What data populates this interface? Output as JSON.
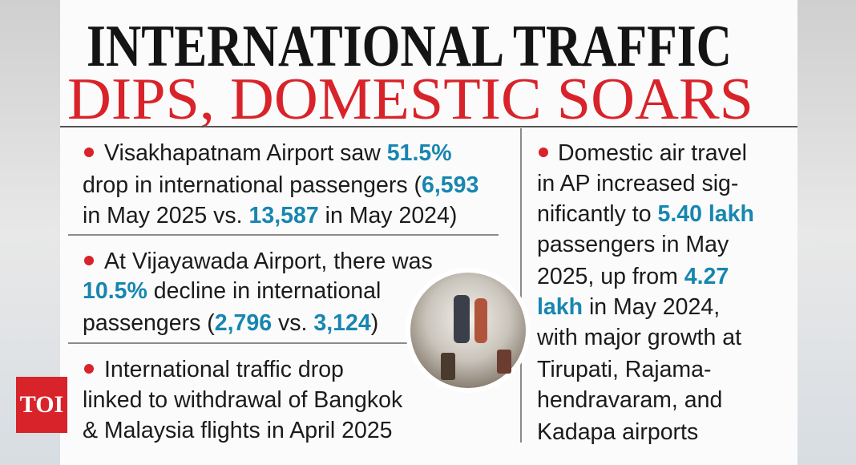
{
  "header": {
    "title_line_1": "INTERNATIONAL TRAFFIC",
    "title_line_2": "DIPS, DOMESTIC SOARS"
  },
  "left_bullets": [
    {
      "lines": [
        [
          {
            "text": "Visakhapatnam Airport saw "
          },
          {
            "text": "51.5%",
            "highlight": true
          }
        ],
        [
          {
            "text": "drop in international passengers ("
          },
          {
            "text": "6,593",
            "highlight": true
          }
        ],
        [
          {
            "text": "in May 2025 vs. "
          },
          {
            "text": "13,587",
            "highlight": true
          },
          {
            "text": " in May 2024)"
          }
        ]
      ]
    },
    {
      "lines": [
        [
          {
            "text": "At Vijayawada Airport, there was"
          }
        ],
        [
          {
            "text": "10.5%",
            "highlight": true
          },
          {
            "text": " decline in international"
          }
        ],
        [
          {
            "text": "passengers ("
          },
          {
            "text": "2,796",
            "highlight": true
          },
          {
            "text": " vs. "
          },
          {
            "text": "3,124",
            "highlight": true
          },
          {
            "text": ")"
          }
        ]
      ]
    },
    {
      "lines": [
        [
          {
            "text": "International traffic drop"
          }
        ],
        [
          {
            "text": "linked to withdrawal of Bangkok"
          }
        ],
        [
          {
            "text": "& Malaysia flights in April 2025"
          }
        ]
      ]
    }
  ],
  "right_bullets": [
    {
      "lines": [
        [
          {
            "text": "Domestic air travel"
          }
        ],
        [
          {
            "text": "in AP increased sig-"
          }
        ],
        [
          {
            "text": "nificantly to "
          },
          {
            "text": "5.40 lakh",
            "highlight": true
          }
        ],
        [
          {
            "text": "passengers in May"
          }
        ],
        [
          {
            "text": "2025, up from "
          },
          {
            "text": "4.27",
            "highlight": true
          }
        ],
        [
          {
            "text": "lakh",
            "highlight": true
          },
          {
            "text": " in May 2024,"
          }
        ],
        [
          {
            "text": "with major growth at"
          }
        ],
        [
          {
            "text": "Tirupati, Rajama-"
          }
        ],
        [
          {
            "text": "hendravaram, and"
          }
        ],
        [
          {
            "text": "Kadapa airports"
          }
        ]
      ]
    }
  ],
  "logo": "TOI"
}
